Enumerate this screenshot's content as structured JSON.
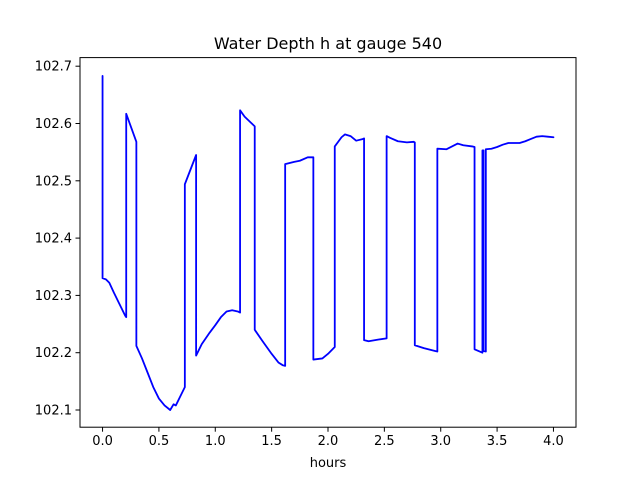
{
  "chart_data": {
    "type": "line",
    "title": "Water Depth h at gauge 540",
    "xlabel": "hours",
    "ylabel": "",
    "xlim": [
      -0.2,
      4.2
    ],
    "ylim": [
      102.07,
      102.715
    ],
    "grid": false,
    "xticks": [
      0.0,
      0.5,
      1.0,
      1.5,
      2.0,
      2.5,
      3.0,
      3.5,
      4.0
    ],
    "xtick_labels": [
      "0.0",
      "0.5",
      "1.0",
      "1.5",
      "2.0",
      "2.5",
      "3.0",
      "3.5",
      "4.0"
    ],
    "yticks": [
      102.1,
      102.2,
      102.3,
      102.4,
      102.5,
      102.6,
      102.7
    ],
    "ytick_labels": [
      "102.1",
      "102.2",
      "102.3",
      "102.4",
      "102.5",
      "102.6",
      "102.7"
    ],
    "series": [
      {
        "color": "#0000ff",
        "x": [
          0.0,
          0.0,
          0.03,
          0.06,
          0.1,
          0.15,
          0.2,
          0.21,
          0.21,
          0.3,
          0.3,
          0.35,
          0.4,
          0.45,
          0.5,
          0.55,
          0.6,
          0.63,
          0.65,
          0.7,
          0.73,
          0.73,
          0.83,
          0.83,
          0.88,
          0.95,
          1.0,
          1.05,
          1.1,
          1.15,
          1.2,
          1.22,
          1.22,
          1.26,
          1.34,
          1.35,
          1.35,
          1.42,
          1.5,
          1.56,
          1.6,
          1.62,
          1.62,
          1.7,
          1.75,
          1.82,
          1.87,
          1.87,
          1.95,
          2.0,
          2.05,
          2.06,
          2.06,
          2.12,
          2.15,
          2.2,
          2.25,
          2.31,
          2.32,
          2.32,
          2.36,
          2.45,
          2.52,
          2.52,
          2.55,
          2.62,
          2.7,
          2.76,
          2.77,
          2.77,
          2.85,
          2.95,
          2.97,
          2.97,
          3.05,
          3.1,
          3.15,
          3.2,
          3.28,
          3.3,
          3.3,
          3.37,
          3.37,
          3.38,
          3.38,
          3.4,
          3.4,
          3.45,
          3.5,
          3.55,
          3.6,
          3.7,
          3.75,
          3.8,
          3.85,
          3.9,
          3.95,
          4.0
        ],
        "y": [
          102.683,
          102.33,
          102.328,
          102.322,
          102.305,
          102.285,
          102.265,
          102.262,
          102.617,
          102.568,
          102.212,
          102.19,
          102.165,
          102.14,
          102.12,
          102.108,
          102.1,
          102.11,
          102.108,
          102.128,
          102.14,
          102.494,
          102.545,
          102.195,
          102.215,
          102.235,
          102.248,
          102.262,
          102.272,
          102.274,
          102.272,
          102.27,
          102.623,
          102.612,
          102.597,
          102.595,
          102.24,
          102.22,
          102.198,
          102.183,
          102.178,
          102.177,
          102.529,
          102.533,
          102.535,
          102.541,
          102.541,
          102.188,
          102.19,
          102.198,
          102.208,
          102.21,
          102.56,
          102.576,
          102.581,
          102.578,
          102.57,
          102.573,
          102.574,
          102.222,
          102.22,
          102.223,
          102.225,
          102.578,
          102.575,
          102.569,
          102.567,
          102.568,
          102.567,
          102.213,
          102.208,
          102.203,
          102.202,
          102.556,
          102.555,
          102.56,
          102.565,
          102.562,
          102.56,
          102.559,
          102.206,
          102.2,
          102.553,
          102.553,
          102.203,
          102.202,
          102.555,
          102.556,
          102.559,
          102.563,
          102.566,
          102.566,
          102.569,
          102.573,
          102.577,
          102.578,
          102.577,
          102.576
        ]
      }
    ]
  }
}
